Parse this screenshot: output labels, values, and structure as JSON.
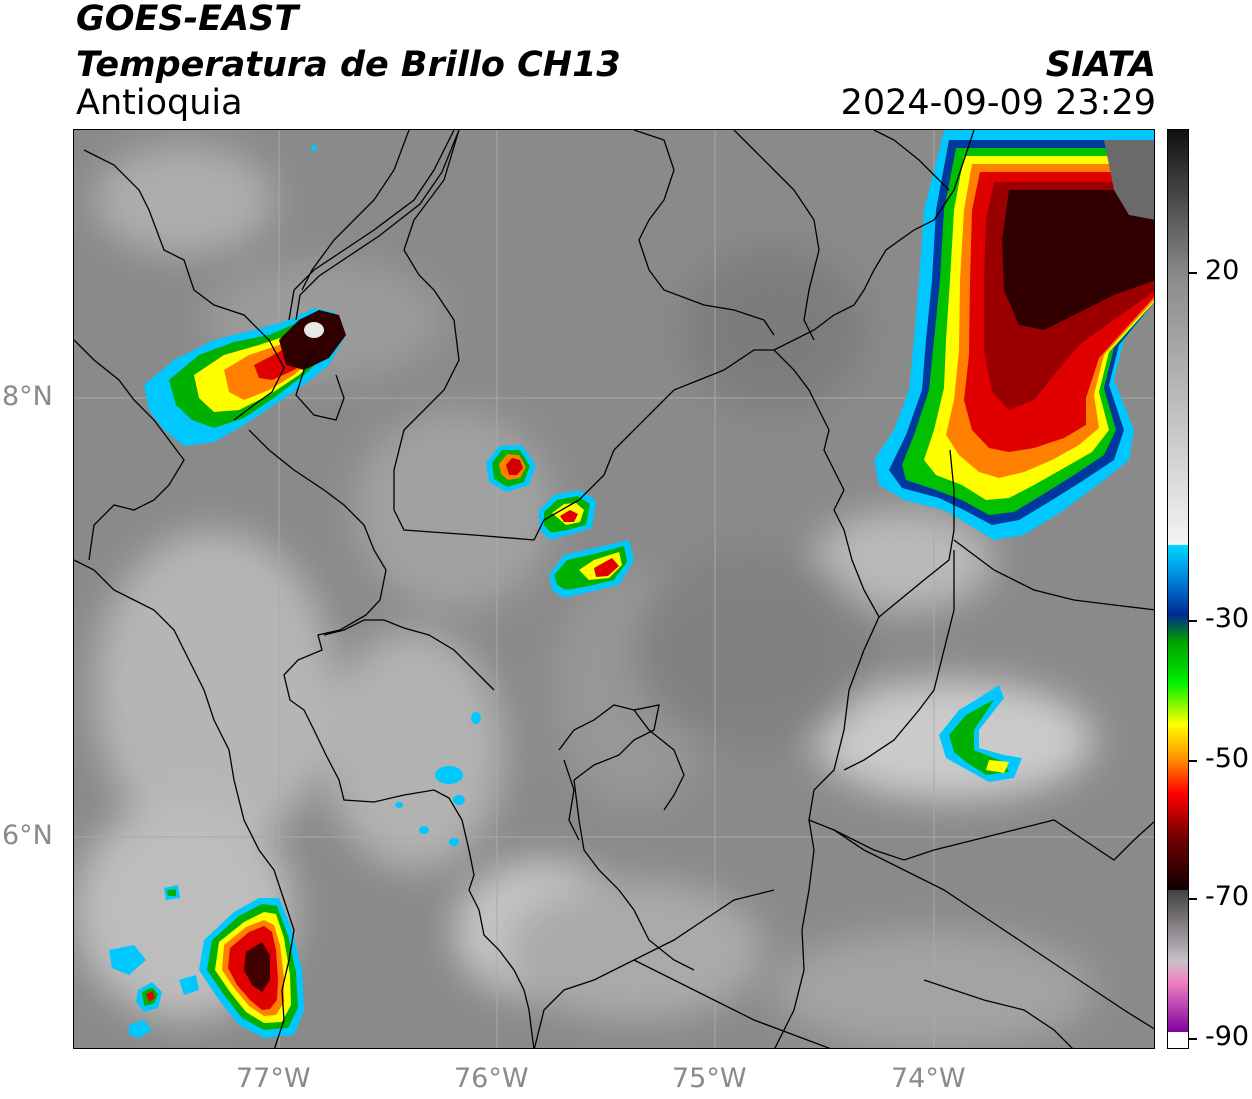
{
  "header": {
    "satellite": "GOES-EAST",
    "product": "Temperatura de Brillo CH13",
    "region": "Antioquia",
    "agency": "SIATA",
    "datetime": "2024-09-09 23:29"
  },
  "map": {
    "longitude_labels": [
      "77°W",
      "76°W",
      "75°W",
      "74°W"
    ],
    "latitude_labels": [
      "8°N",
      "6°N"
    ],
    "extent": {
      "lon_min": -77.95,
      "lon_max": -72.98,
      "lat_min": 4.95,
      "lat_max": 9.2
    },
    "background_gray": "#8c8c8c",
    "storm_colors": [
      "#00c8ff",
      "#00d000",
      "#ffff00",
      "#ff8000",
      "#e00000",
      "#300000"
    ]
  },
  "colorbar": {
    "labels": [
      "20",
      "-30",
      "-50",
      "-70",
      "-90"
    ],
    "values": [
      20,
      -30,
      -50,
      -70,
      -90
    ],
    "range": [
      -92,
      40
    ]
  }
}
